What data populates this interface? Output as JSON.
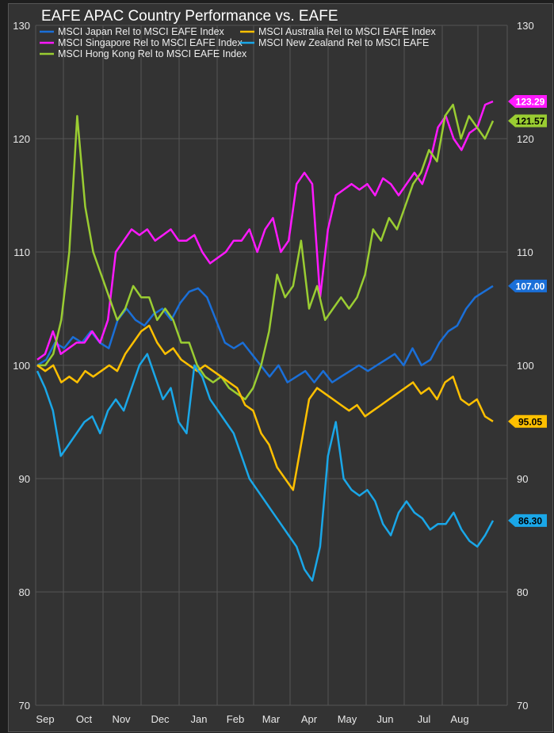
{
  "chart_data": {
    "type": "line",
    "title": "EAFE APAC Country Performance vs. EAFE",
    "xlabel": "",
    "ylabel": "",
    "ylim": [
      70,
      130
    ],
    "yticks": [
      "70",
      "80",
      "90",
      "100",
      "110",
      "120",
      "130"
    ],
    "x_tick_labels": [
      "Sep",
      "Oct",
      "Nov",
      "Dec",
      "Jan",
      "Feb",
      "Mar",
      "Apr",
      "May",
      "Jun",
      "Jul",
      "Aug"
    ],
    "grid": true,
    "legend_position": "top-left",
    "series": [
      {
        "name": "MSCI Japan Rel to MSCI EAFE Index",
        "color": "#1a6fd8",
        "label_text_color": "#ffffff",
        "last_label": "107.00",
        "values": [
          100,
          100.5,
          102,
          101.5,
          102.5,
          102,
          103,
          102,
          101.5,
          104,
          105,
          104,
          103.5,
          104.5,
          105,
          104,
          105.5,
          106.5,
          106.8,
          106,
          104,
          102,
          101.5,
          102,
          101,
          100,
          99,
          100,
          98.5,
          99,
          99.5,
          98.5,
          99.5,
          98.5,
          99,
          99.5,
          100,
          99.5,
          100,
          100.5,
          101,
          100,
          101.5,
          100,
          100.5,
          102,
          103,
          103.5,
          105,
          106,
          106.5,
          107
        ]
      },
      {
        "name": "MSCI Singapore Rel to MSCI EAFE Index",
        "color": "#ff19ff",
        "label_text_color": "#ffffff",
        "last_label": "123.29",
        "values": [
          100.5,
          101,
          103,
          101,
          101.5,
          102,
          102,
          103,
          102,
          104,
          110,
          111,
          112,
          111.5,
          112,
          111,
          111.5,
          112,
          111,
          111,
          111.5,
          110,
          109,
          109.5,
          110,
          111,
          111,
          112,
          110,
          112,
          113,
          110,
          111,
          116,
          117,
          116,
          106,
          112,
          115,
          115.5,
          116,
          115.5,
          116,
          115,
          116.5,
          116,
          115,
          116,
          117,
          116,
          118,
          121,
          122,
          120,
          119,
          120.5,
          121,
          123,
          123.29
        ]
      },
      {
        "name": "MSCI Hong Kong Rel to MSCI EAFE Index",
        "color": "#9acd32",
        "label_text_color": "#000000",
        "last_label": "121.57",
        "values": [
          100,
          100,
          101,
          104,
          110,
          122,
          114,
          110,
          108,
          106,
          104,
          105,
          107,
          106,
          106,
          104,
          105,
          104,
          102,
          102,
          100,
          99,
          98.5,
          99,
          98,
          97.5,
          97,
          98,
          100,
          103,
          108,
          106,
          107,
          111,
          105,
          107,
          104,
          105,
          106,
          105,
          106,
          108,
          112,
          111,
          113,
          112,
          114,
          116,
          117,
          119,
          118,
          122,
          123,
          120,
          122,
          121,
          120,
          121.57
        ]
      },
      {
        "name": "MSCI Australia Rel to MSCI EAFE Index",
        "color": "#ffc000",
        "label_text_color": "#000000",
        "last_label": "95.05",
        "values": [
          100,
          99.5,
          100,
          98.5,
          99,
          98.5,
          99.5,
          99,
          99.5,
          100,
          99.5,
          101,
          102,
          103,
          103.5,
          102,
          101,
          101.5,
          100.5,
          100,
          99.5,
          100,
          99.5,
          99,
          98.5,
          98,
          96.5,
          96,
          94,
          93,
          91,
          90,
          89,
          93,
          97,
          98,
          97.5,
          97,
          96.5,
          96,
          96.5,
          95.5,
          96,
          96.5,
          97,
          97.5,
          98,
          98.5,
          97.5,
          98,
          97,
          98.5,
          99,
          97,
          96.5,
          97,
          95.5,
          95.05
        ]
      },
      {
        "name": "MSCI New Zealand Rel to MSCI EAFE",
        "color": "#1aa7e8",
        "label_text_color": "#000000",
        "last_label": "86.30",
        "values": [
          99.5,
          98,
          96,
          92,
          93,
          94,
          95,
          95.5,
          94,
          96,
          97,
          96,
          98,
          100,
          101,
          99,
          97,
          98,
          95,
          94,
          100,
          99,
          97,
          96,
          95,
          94,
          92,
          90,
          89,
          88,
          87,
          86,
          85,
          84,
          82,
          81,
          84,
          92,
          95,
          90,
          89,
          88.5,
          89,
          88,
          86,
          85,
          87,
          88,
          87,
          86.5,
          85.5,
          86,
          86,
          87,
          85.5,
          84.5,
          84,
          85,
          86.3
        ]
      }
    ]
  }
}
